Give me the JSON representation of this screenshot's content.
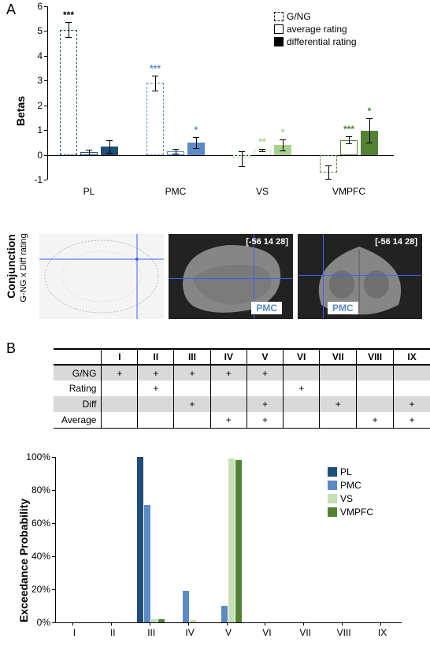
{
  "panelA": {
    "label": "A",
    "ylabel": "Betas",
    "ylim": [
      -1,
      6
    ],
    "ytick_step": 1,
    "categories": [
      "PL",
      "PMC",
      "VS",
      "VMPFC"
    ],
    "colors": {
      "PL": {
        "gng": "#1f4e79",
        "avg": "#1f4e79",
        "diff": "#1f4e79"
      },
      "PMC": {
        "gng": "#5b8bc4",
        "avg": "#5b8bc4",
        "diff": "#5b8bc4"
      },
      "VS": {
        "gng": "#c5e0b4",
        "avg": "#c5e0b4",
        "diff": "#a9d08e"
      },
      "VMPFC": {
        "gng": "#548235",
        "avg": "#548235",
        "diff": "#548235"
      }
    },
    "series": {
      "PL": {
        "gng": {
          "val": 5.05,
          "err": 0.3,
          "sig": "***",
          "sigColor": "#000000"
        },
        "avg": {
          "val": 0.1,
          "err": 0.12
        },
        "diff": {
          "val": 0.33,
          "err": 0.25
        }
      },
      "PMC": {
        "gng": {
          "val": 2.9,
          "err": 0.3,
          "sig": "***",
          "sigColor": "#5b8bc4"
        },
        "avg": {
          "val": 0.15,
          "err": 0.1
        },
        "diff": {
          "val": 0.5,
          "err": 0.22,
          "sig": "*",
          "sigColor": "#5b8bc4"
        }
      },
      "VS": {
        "gng": {
          "val": -0.15,
          "err": 0.3
        },
        "avg": {
          "val": 0.18,
          "err": 0.05,
          "sig": "**",
          "sigColor": "#a9d08e"
        },
        "diff": {
          "val": 0.4,
          "err": 0.22,
          "sig": "*",
          "sigColor": "#a9d08e"
        }
      },
      "VMPFC": {
        "gng": {
          "val": -0.7,
          "err": 0.28
        },
        "avg": {
          "val": 0.6,
          "err": 0.15,
          "sig": "***",
          "sigColor": "#548235"
        },
        "diff": {
          "val": 0.98,
          "err": 0.5,
          "sig": "*",
          "sigColor": "#548235"
        }
      }
    },
    "legend": [
      {
        "label": "G/NG",
        "style": "dashed"
      },
      {
        "label": "average rating",
        "style": "open"
      },
      {
        "label": "differential rating",
        "style": "filled"
      }
    ]
  },
  "conjunction": {
    "sideLabel": "Conjunction",
    "subLabel": "G-NG x Diff rating",
    "coords": "[-56 14 28]",
    "region": "PMC"
  },
  "panelB": {
    "label": "B",
    "columns": [
      "I",
      "II",
      "III",
      "IV",
      "V",
      "VI",
      "VII",
      "VIII",
      "IX"
    ],
    "rows": [
      {
        "name": "G/NG",
        "marks": [
          "+",
          "+",
          "+",
          "+",
          "+",
          "",
          "",
          "",
          ""
        ]
      },
      {
        "name": "Rating",
        "marks": [
          "",
          "+",
          "",
          "",
          "",
          "+",
          "",
          "",
          ""
        ]
      },
      {
        "name": "Diff",
        "marks": [
          "",
          "",
          "+",
          "",
          "+",
          "",
          "+",
          "",
          "+"
        ]
      },
      {
        "name": "Average",
        "marks": [
          "",
          "",
          "",
          "+",
          "+",
          "",
          "",
          "+",
          "+"
        ]
      }
    ]
  },
  "chartB": {
    "ylabel": "Exceedance Probability",
    "ylim": [
      0,
      100
    ],
    "yticks": [
      0,
      20,
      40,
      60,
      80,
      100
    ],
    "categories": [
      "I",
      "II",
      "III",
      "IV",
      "V",
      "VI",
      "VII",
      "VIII",
      "IX"
    ],
    "series": {
      "PL": {
        "color": "#1f4e79",
        "values": [
          0,
          0,
          100,
          0,
          0,
          0,
          0,
          0,
          0
        ]
      },
      "PMC": {
        "color": "#5b8bc4",
        "values": [
          0,
          0.1,
          71,
          19,
          10,
          0,
          0.1,
          0,
          0
        ]
      },
      "VS": {
        "color": "#c5e0b4",
        "values": [
          0,
          0,
          2,
          1.5,
          99,
          0,
          0,
          0,
          0
        ]
      },
      "VMPFC": {
        "color": "#548235",
        "values": [
          0,
          0,
          2,
          0,
          98,
          0,
          0,
          0,
          0
        ]
      }
    },
    "legend_order": [
      "PL",
      "PMC",
      "VS",
      "VMPFC"
    ]
  }
}
